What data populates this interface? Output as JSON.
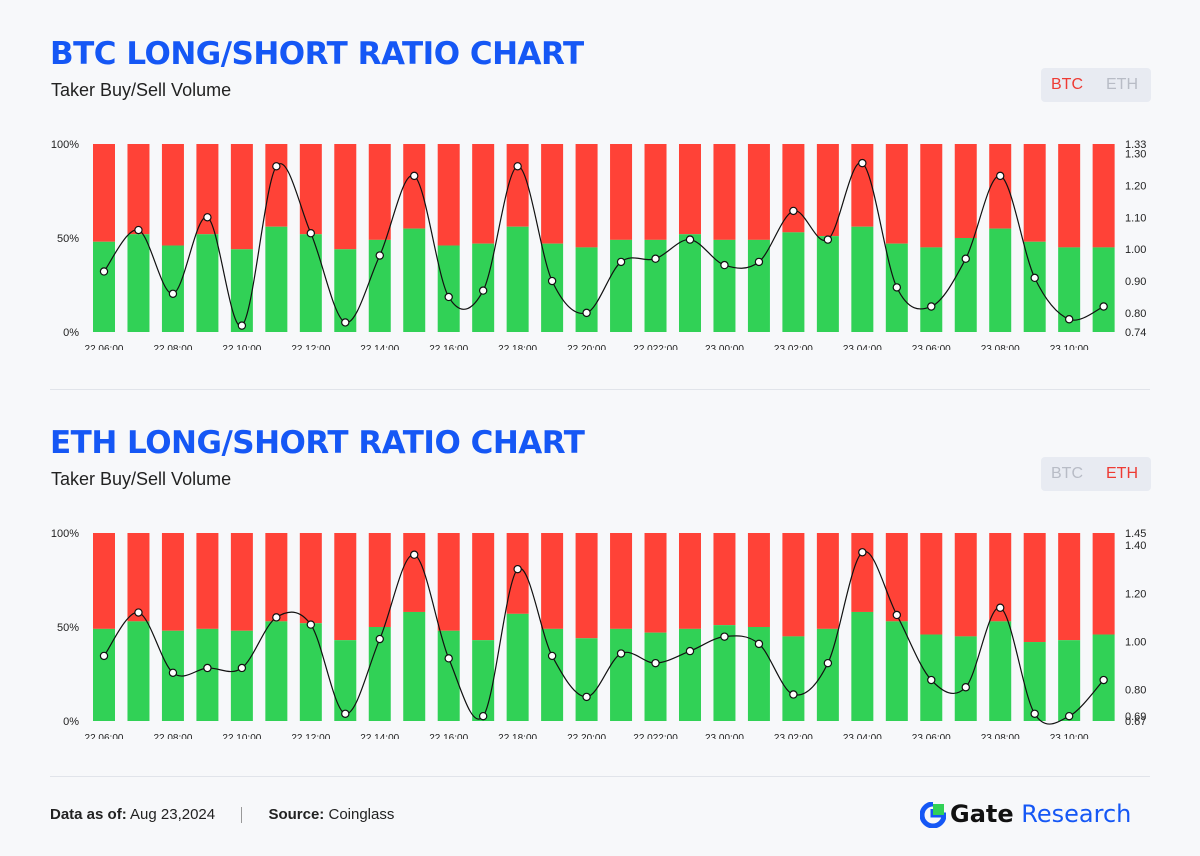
{
  "charts": [
    {
      "title": "BTC LONG/SHORT RATIO CHART",
      "subtitle": "Taker Buy/Sell Volume",
      "toggle": [
        {
          "label": "BTC",
          "active": true
        },
        {
          "label": "ETH",
          "active": false
        }
      ]
    },
    {
      "title": "ETH LONG/SHORT RATIO CHART",
      "subtitle": "Taker Buy/Sell Volume",
      "toggle": [
        {
          "label": "BTC",
          "active": false
        },
        {
          "label": "ETH",
          "active": true
        }
      ]
    }
  ],
  "footer": {
    "date_label": "Data as of:",
    "date_value": "Aug 23,2024",
    "source_label": "Source:",
    "source_value": "Coinglass"
  },
  "brand": {
    "name": "Gate",
    "suffix": "Research"
  },
  "colors": {
    "long": "#31d156",
    "short": "#ff4237",
    "line": "#111111",
    "title": "#1557f5"
  },
  "chart_data": [
    {
      "type": "bar",
      "stacked": true,
      "combo_line": true,
      "title": "BTC LONG/SHORT RATIO CHART",
      "subtitle": "Taker Buy/Sell Volume",
      "categories": [
        "22,06:00",
        "22,07:00",
        "22,08:00",
        "22,09:00",
        "22,10:00",
        "22,11:00",
        "22,12:00",
        "22,13:00",
        "22,14:00",
        "22,15:00",
        "22,16:00",
        "22,17:00",
        "22,18:00",
        "22,19:00",
        "22,20:00",
        "22,21:00",
        "22,022:00",
        "22,23:00",
        "23,00:00",
        "23,01:00",
        "23,02:00",
        "23,03:00",
        "23,04:00",
        "23,05:00",
        "23,06:00",
        "23,07:00",
        "23,08:00",
        "23,09:00",
        "23,10:00",
        "23,11:00"
      ],
      "x_tick_labels": [
        "22,06:00",
        "22,08:00",
        "22,10:00",
        "22,12:00",
        "22,14:00",
        "22,16:00",
        "22,18:00",
        "22,20:00",
        "22,022:00",
        "23,00:00",
        "23,02:00",
        "23,04:00",
        "23,06:00",
        "23,08:00",
        "23,10:00"
      ],
      "series": [
        {
          "axis": "left",
          "values": [
            48,
            52,
            46,
            52,
            44,
            56,
            52,
            44,
            49,
            55,
            46,
            47,
            56,
            47,
            45,
            49,
            49,
            52,
            49,
            49,
            53,
            51,
            56,
            47,
            45,
            50,
            55,
            48,
            45,
            45
          ]
        },
        {
          "axis": "left",
          "values": [
            52,
            48,
            54,
            48,
            56,
            44,
            48,
            56,
            51,
            45,
            54,
            53,
            44,
            53,
            55,
            51,
            51,
            48,
            51,
            51,
            47,
            49,
            44,
            53,
            55,
            50,
            45,
            52,
            55,
            55
          ]
        },
        {
          "axis": "right",
          "type": "line",
          "values": [
            0.93,
            1.06,
            0.86,
            1.1,
            0.76,
            1.26,
            1.05,
            0.77,
            0.98,
            1.23,
            0.85,
            0.87,
            1.26,
            0.9,
            0.8,
            0.96,
            0.97,
            1.03,
            0.95,
            0.96,
            1.12,
            1.03,
            1.27,
            0.88,
            0.82,
            0.97,
            1.23,
            0.91,
            0.78,
            0.82
          ]
        }
      ],
      "y_left": {
        "ticks": [
          "0%",
          "50%",
          "100%"
        ],
        "range": [
          0,
          100
        ]
      },
      "y_right": {
        "range": [
          0.74,
          1.33
        ],
        "ticks": [
          0.74,
          0.8,
          0.9,
          1.0,
          1.1,
          1.2,
          1.3,
          1.33
        ],
        "tick_labels": [
          "0.74",
          "0.80",
          "0.90",
          "1.00",
          "1.10",
          "1.20",
          "1.30",
          "1.33"
        ]
      },
      "grid": false
    },
    {
      "type": "bar",
      "stacked": true,
      "combo_line": true,
      "title": "ETH LONG/SHORT RATIO CHART",
      "subtitle": "Taker Buy/Sell Volume",
      "categories": [
        "22,06:00",
        "22,07:00",
        "22,08:00",
        "22,09:00",
        "22,10:00",
        "22,11:00",
        "22,12:00",
        "22,13:00",
        "22,14:00",
        "22,15:00",
        "22,16:00",
        "22,17:00",
        "22,18:00",
        "22,19:00",
        "22,20:00",
        "22,21:00",
        "22,022:00",
        "22,23:00",
        "23,00:00",
        "23,01:00",
        "23,02:00",
        "23,03:00",
        "23,04:00",
        "23,05:00",
        "23,06:00",
        "23,07:00",
        "23,08:00",
        "23,09:00",
        "23,10:00",
        "23,11:00"
      ],
      "x_tick_labels": [
        "22,06:00",
        "22,08:00",
        "22,10:00",
        "22,12:00",
        "22,14:00",
        "22,16:00",
        "22,18:00",
        "22,20:00",
        "22,022:00",
        "23,00:00",
        "23,02:00",
        "23,04:00",
        "23,06:00",
        "23,08:00",
        "23,10:00"
      ],
      "series": [
        {
          "axis": "left",
          "values": [
            49,
            53,
            48,
            49,
            48,
            53,
            52,
            43,
            50,
            58,
            48,
            43,
            57,
            49,
            44,
            49,
            47,
            49,
            51,
            50,
            45,
            49,
            58,
            53,
            46,
            45,
            53,
            42,
            43,
            46
          ]
        },
        {
          "axis": "left",
          "values": [
            51,
            47,
            52,
            51,
            52,
            47,
            48,
            57,
            50,
            42,
            52,
            57,
            43,
            51,
            56,
            51,
            53,
            51,
            49,
            50,
            55,
            51,
            42,
            47,
            54,
            55,
            47,
            58,
            57,
            54
          ]
        },
        {
          "axis": "right",
          "type": "line",
          "values": [
            0.94,
            1.12,
            0.87,
            0.89,
            0.89,
            1.1,
            1.07,
            0.7,
            1.01,
            1.36,
            0.93,
            0.69,
            1.3,
            0.94,
            0.77,
            0.95,
            0.91,
            0.96,
            1.02,
            0.99,
            0.78,
            0.91,
            1.37,
            1.11,
            0.84,
            0.81,
            1.14,
            0.7,
            0.69,
            0.84
          ]
        }
      ],
      "y_left": {
        "ticks": [
          "0%",
          "50%",
          "100%"
        ],
        "range": [
          0,
          100
        ]
      },
      "y_right": {
        "range": [
          0.67,
          1.45
        ],
        "ticks": [
          0.67,
          0.69,
          0.8,
          1.0,
          1.2,
          1.4,
          1.45
        ],
        "tick_labels": [
          "0.67",
          "0.69",
          "0.80",
          "1.00",
          "1.20",
          "1.40",
          "1.45"
        ]
      },
      "grid": false
    }
  ]
}
